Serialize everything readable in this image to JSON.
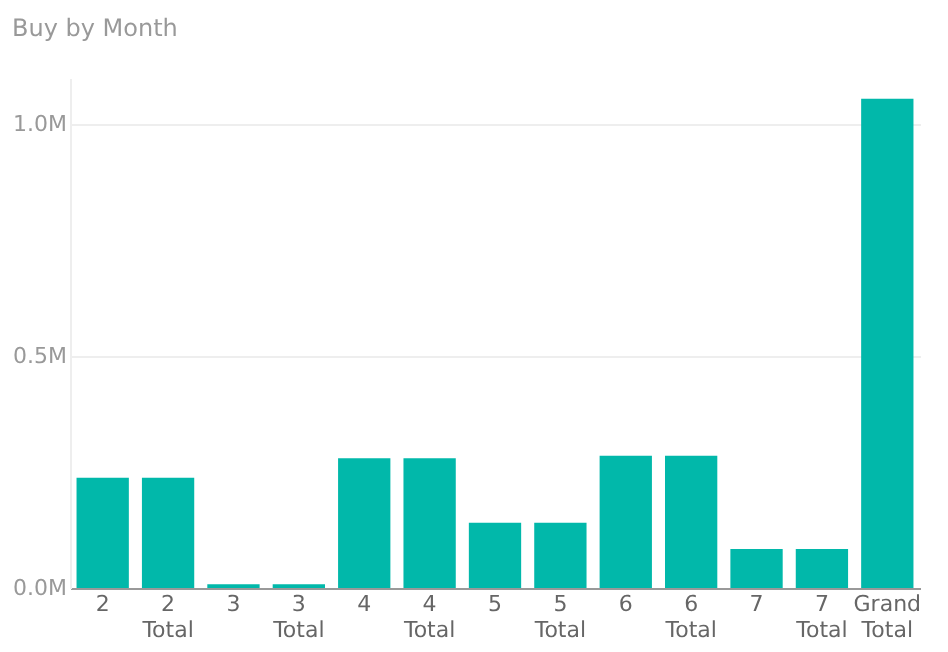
{
  "chart_data": {
    "type": "bar",
    "title": "Buy by Month",
    "categories": [
      "2",
      "2 Total",
      "3",
      "3 Total",
      "4",
      "4 Total",
      "5",
      "5 Total",
      "6",
      "6 Total",
      "7",
      "7 Total",
      "Grand Total"
    ],
    "values": [
      0.238,
      0.238,
      0.008,
      0.008,
      0.28,
      0.28,
      0.141,
      0.141,
      0.285,
      0.285,
      0.084,
      0.084,
      1.055
    ],
    "color": "#01b8aa",
    "ylim": [
      0,
      1.1
    ],
    "yticks": [
      {
        "value": 0,
        "label": "0.0M"
      },
      {
        "value": 0.5,
        "label": "0.5M"
      },
      {
        "value": 1.0,
        "label": "1.0M"
      }
    ],
    "grid": "y"
  }
}
